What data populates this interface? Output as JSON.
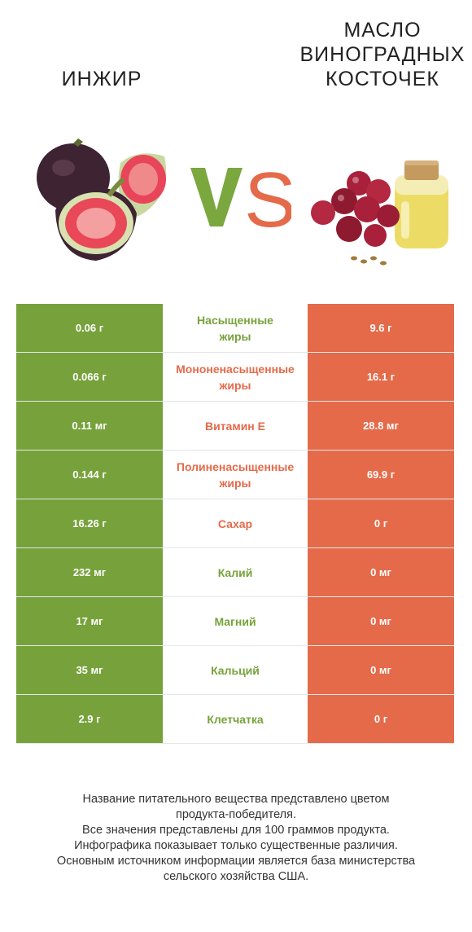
{
  "header": {
    "left_title": "ИНЖИР",
    "right_title_lines": [
      "МАСЛО",
      "ВИНОГРАДНЫХ",
      "КОСТОЧЕК"
    ],
    "vs_text": "VS",
    "left_image_icon": "fig-fruit-icon",
    "right_image_icon": "grapeseed-oil-jar-icon"
  },
  "colors": {
    "left_accent": "#77a23b",
    "right_accent": "#e46a4a"
  },
  "rows": [
    {
      "left": "0.06 г",
      "nutrient": "Насыщенные\nжиры",
      "right": "9.6 г",
      "winner": "left"
    },
    {
      "left": "0.066 г",
      "nutrient": "Мононенасыщенные\nжиры",
      "right": "16.1 г",
      "winner": "right"
    },
    {
      "left": "0.11 мг",
      "nutrient": "Витамин E",
      "right": "28.8 мг",
      "winner": "right"
    },
    {
      "left": "0.144 г",
      "nutrient": "Полиненасыщенные\nжиры",
      "right": "69.9 г",
      "winner": "right"
    },
    {
      "left": "16.26 г",
      "nutrient": "Сахар",
      "right": "0 г",
      "winner": "right"
    },
    {
      "left": "232 мг",
      "nutrient": "Калий",
      "right": "0 мг",
      "winner": "left"
    },
    {
      "left": "17 мг",
      "nutrient": "Магний",
      "right": "0 мг",
      "winner": "left"
    },
    {
      "left": "35 мг",
      "nutrient": "Кальций",
      "right": "0 мг",
      "winner": "left"
    },
    {
      "left": "2.9 г",
      "nutrient": "Клетчатка",
      "right": "0 г",
      "winner": "left"
    }
  ],
  "footer": {
    "lines": [
      "Название питательного вещества представлено цветом",
      "продукта-победителя.",
      "Все значения представлены для 100 граммов продукта.",
      "Инфографика показывает только существенные различия.",
      "Основным источником информации является база министерства",
      "сельского хозяйства США."
    ]
  }
}
